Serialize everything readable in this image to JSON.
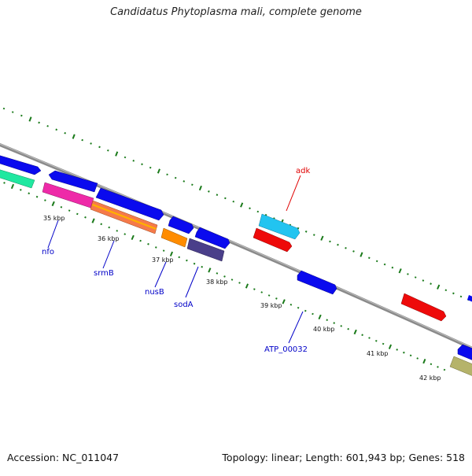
{
  "title": "Candidatus Phytoplasma mali, complete genome",
  "footer": {
    "accession": "Accession: NC_011047",
    "summary": "Topology: linear; Length: 601,943 bp; Genes: 518"
  },
  "scale": {
    "unit": "kbp",
    "labels": [
      "35 kbp",
      "36 kbp",
      "37 kbp",
      "38 kbp",
      "39 kbp",
      "40 kbp",
      "41 kbp",
      "42 kbp"
    ]
  },
  "gene_labels": [
    {
      "name": "nfo",
      "color": "#0000c8"
    },
    {
      "name": "srmB",
      "color": "#0000c8"
    },
    {
      "name": "nusB",
      "color": "#0000c8"
    },
    {
      "name": "sodA",
      "color": "#0000c8"
    },
    {
      "name": "ATP_00032",
      "color": "#0000c8"
    },
    {
      "name": "adk",
      "color": "#e00000"
    }
  ],
  "colors": {
    "backbone": "#8a8a8a",
    "tick": "#1a7a1a",
    "cds_blue": "#0a0aee",
    "cds_red": "#ee0a0a",
    "cds_cyan": "#22c4f0",
    "cds_magenta": "#ee2aa8",
    "cds_orange": "#ff8c00",
    "cds_slate": "#4a3f8a",
    "cds_green": "#20e8a0",
    "cds_khaki": "#b5b36a"
  }
}
